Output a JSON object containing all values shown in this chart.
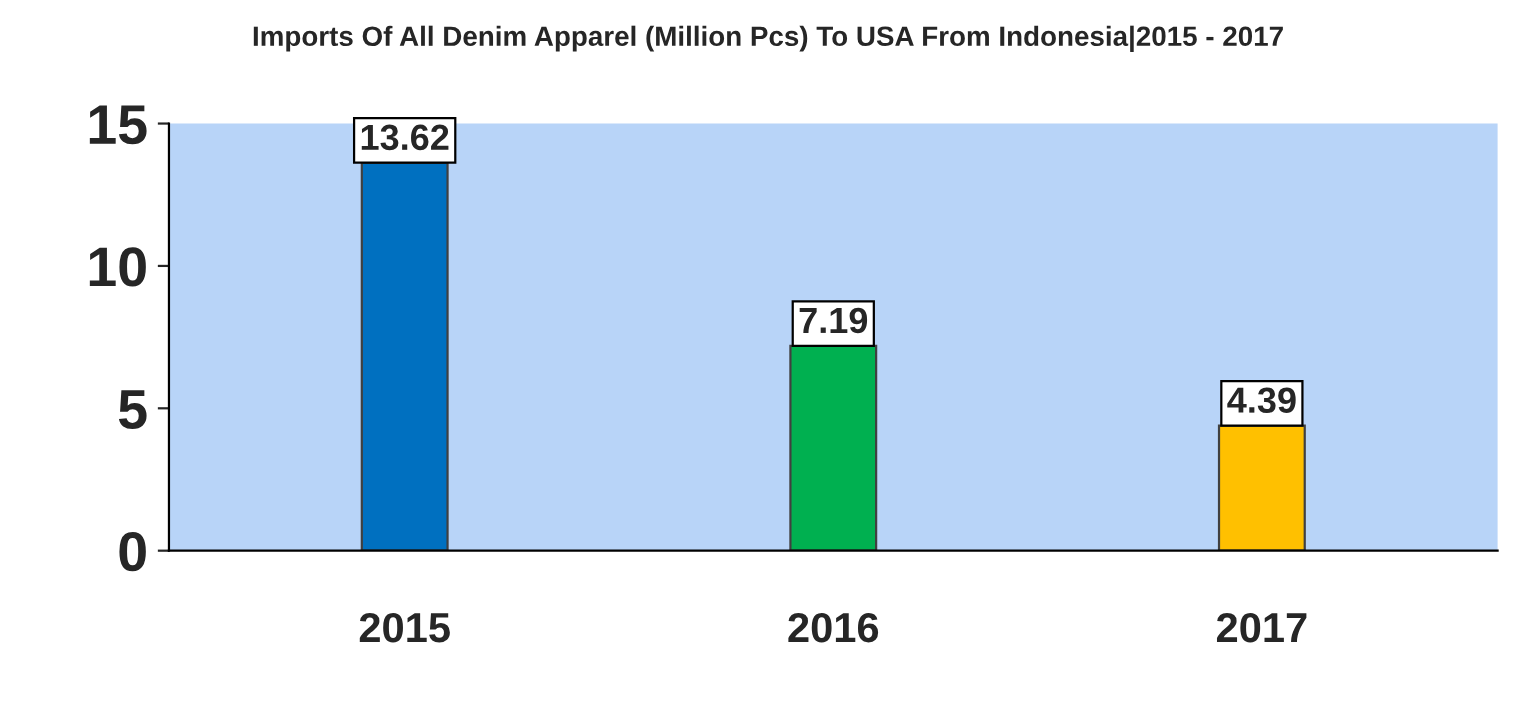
{
  "chart_data": {
    "type": "bar",
    "title": "Imports Of All Denim Apparel (Million Pcs) To USA From Indonesia|2015 - 2017",
    "categories": [
      "2015",
      "2016",
      "2017"
    ],
    "values": [
      13.62,
      7.19,
      4.39
    ],
    "colors": [
      "#0070c0",
      "#00b050",
      "#ffc000"
    ],
    "ylim": [
      0,
      15
    ],
    "yticks": [
      0,
      5,
      10,
      15
    ],
    "grid": false,
    "data_labels": true
  }
}
